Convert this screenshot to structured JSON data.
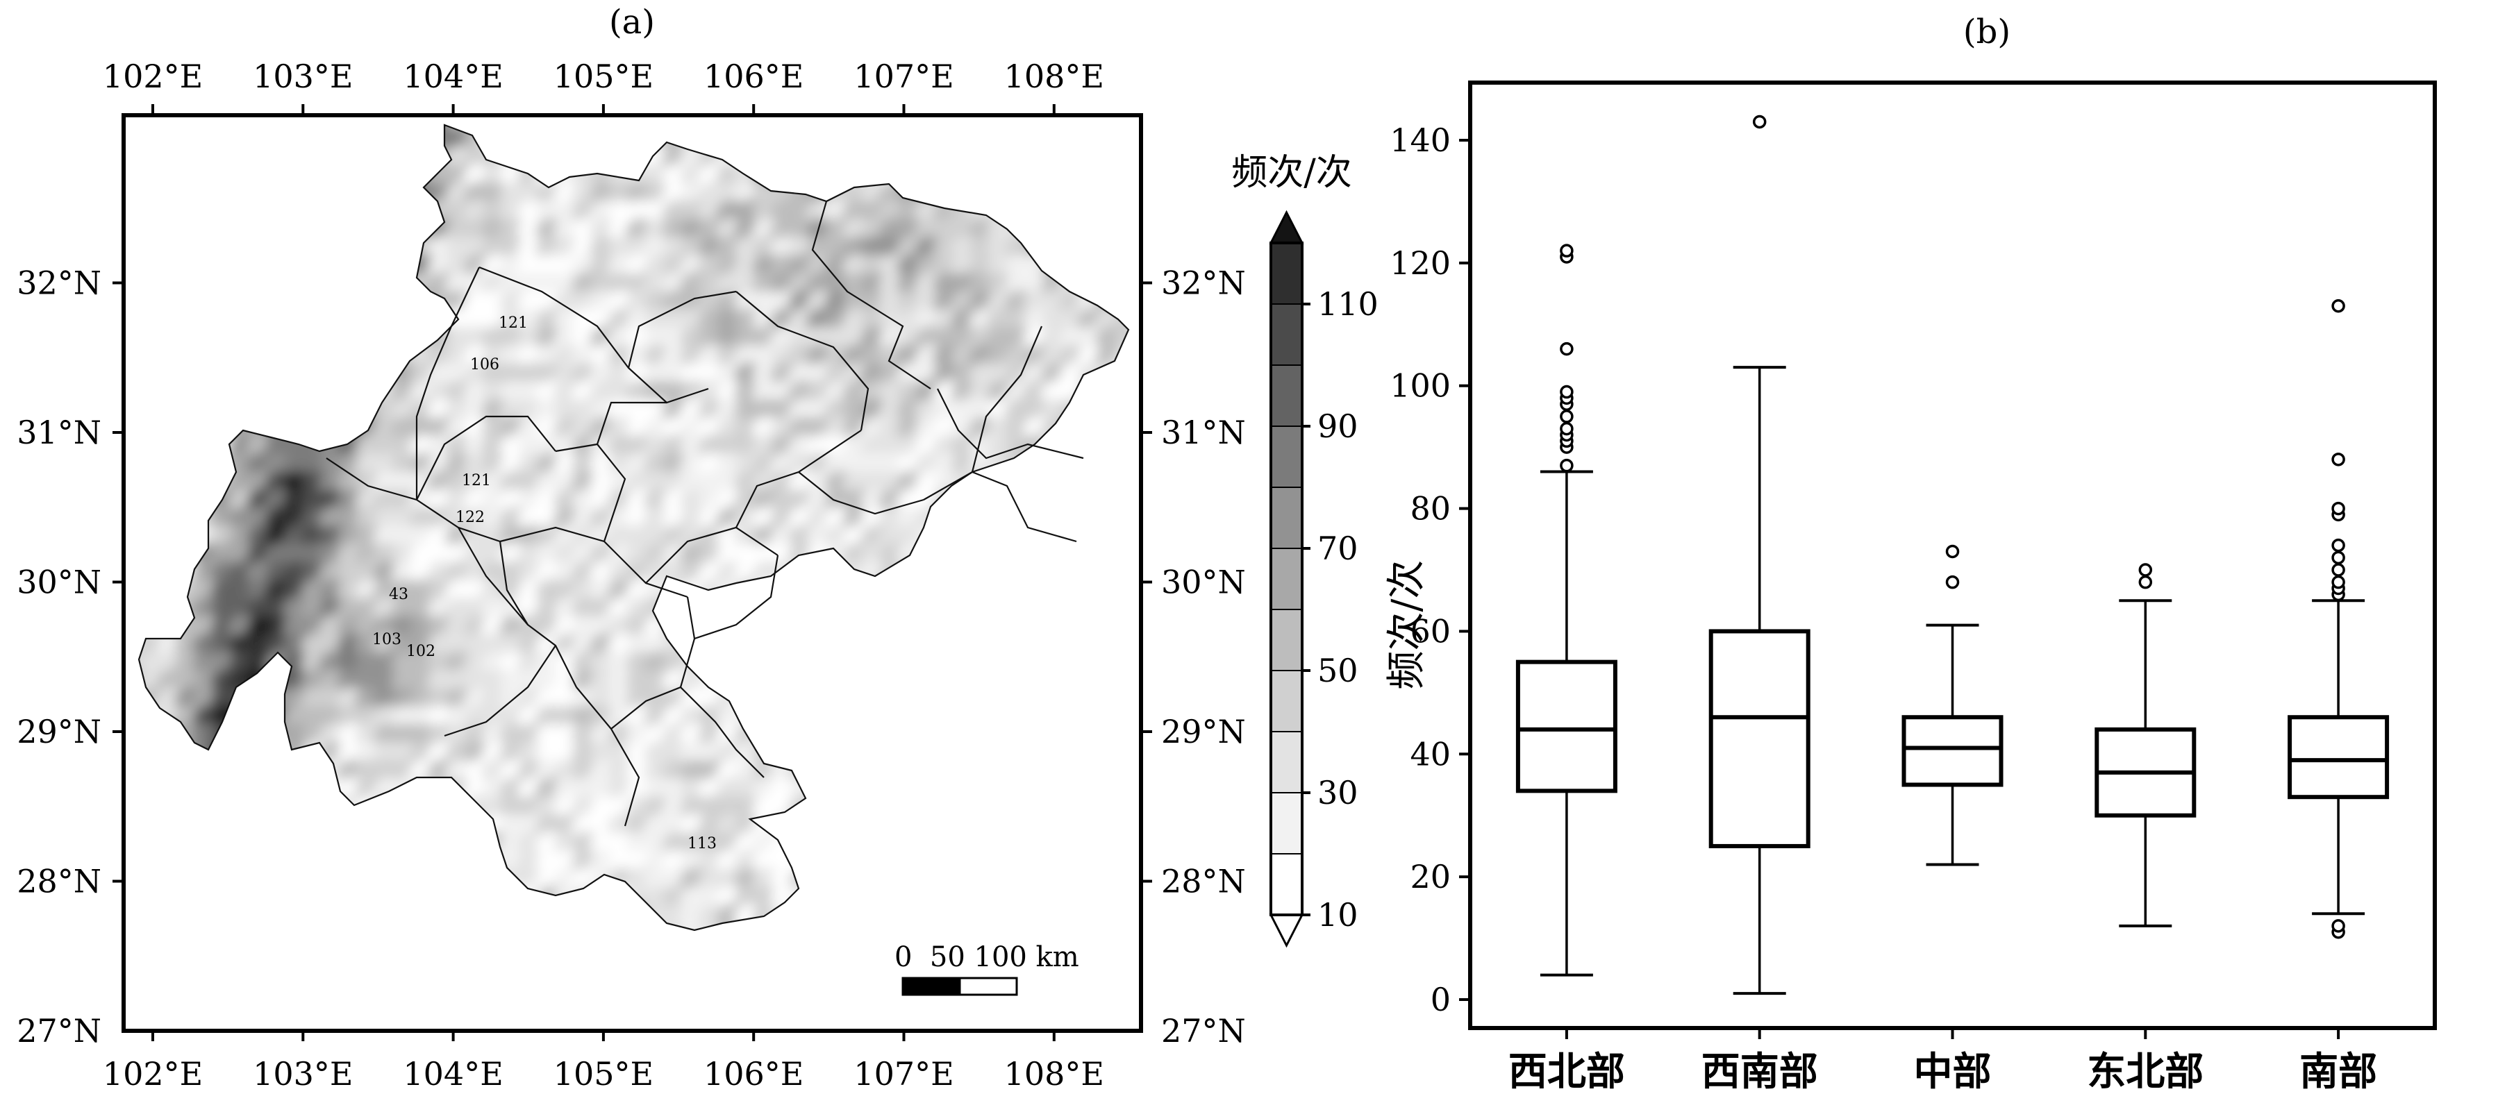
{
  "panel_a": {
    "label": "(a)",
    "lon_ticks": [
      "102°E",
      "103°E",
      "104°E",
      "105°E",
      "106°E",
      "107°E",
      "108°E"
    ],
    "lat_ticks": [
      "27°N",
      "28°N",
      "29°N",
      "30°N",
      "31°N",
      "32°N"
    ],
    "colorbar": {
      "title": "频次/次",
      "tick_labels": [
        "10",
        "30",
        "50",
        "70",
        "90",
        "110"
      ],
      "levels": [
        10,
        20,
        30,
        40,
        50,
        60,
        70,
        80,
        90,
        100,
        110,
        120
      ],
      "colors": [
        "#ffffff",
        "#f2f2f2",
        "#e3e3e3",
        "#d0d0d0",
        "#bdbdbd",
        "#a8a8a8",
        "#929292",
        "#7b7b7b",
        "#636363",
        "#4b4b4b",
        "#2f2f2f",
        "#141414"
      ]
    },
    "station_labels": [
      "121",
      "106",
      "121",
      "122",
      "43",
      "103",
      "102",
      "113"
    ],
    "scalebar": {
      "label": "0  50 100 km"
    }
  },
  "chart_data": {
    "type": "box",
    "label": "(b)",
    "ylabel": "频次/次",
    "ylim": [
      0,
      150
    ],
    "yticks": [
      "0",
      "20",
      "40",
      "60",
      "80",
      "100",
      "120",
      "140"
    ],
    "categories": [
      "西北部",
      "西南部",
      "中部",
      "东北部",
      "南部"
    ],
    "boxes": [
      {
        "min": 4,
        "q1": 34,
        "median": 44,
        "q3": 55,
        "max": 86,
        "outliers": [
          87,
          90,
          91,
          92,
          93,
          95,
          97,
          98,
          99,
          106,
          121,
          122
        ]
      },
      {
        "min": 1,
        "q1": 25,
        "median": 46,
        "q3": 60,
        "max": 103,
        "outliers": [
          143
        ]
      },
      {
        "min": 22,
        "q1": 35,
        "median": 41,
        "q3": 46,
        "max": 61,
        "outliers": [
          68,
          73
        ]
      },
      {
        "min": 12,
        "q1": 30,
        "median": 37,
        "q3": 44,
        "max": 65,
        "outliers": [
          68,
          70
        ]
      },
      {
        "min": 14,
        "q1": 33,
        "median": 39,
        "q3": 46,
        "max": 65,
        "outliers": [
          11,
          12,
          66,
          67,
          68,
          70,
          72,
          74,
          79,
          80,
          88,
          113
        ]
      }
    ]
  }
}
